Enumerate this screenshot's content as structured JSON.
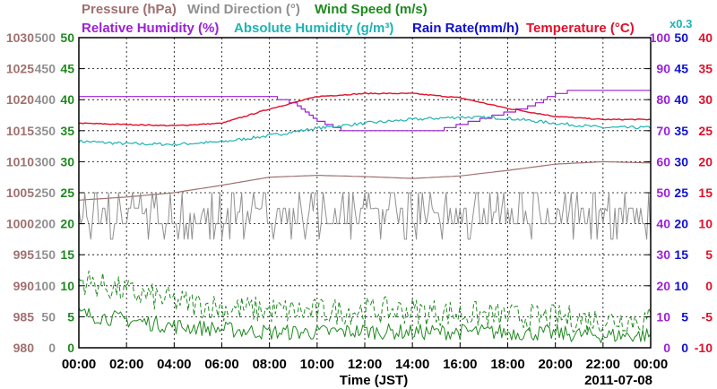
{
  "chart_data": {
    "type": "line",
    "legend": {
      "row1": [
        {
          "label": "Pressure (hPa)",
          "color": "#a0706f"
        },
        {
          "label": "Wind Direction (°)",
          "color": "#909090"
        },
        {
          "label": "Wind Speed (m/s)",
          "color": "#1f8a1f"
        }
      ],
      "row2": [
        {
          "label": "Relative Humidity (%)",
          "color": "#9a22d6"
        },
        {
          "label": "Absolute Humidity (g/m³)",
          "color": "#1fb3b3"
        },
        {
          "label": "Rain Rate(mm/h)",
          "color": "#1010d0"
        },
        {
          "label": "Temperature (°C)",
          "color": "#e0102a"
        }
      ],
      "rain_multiplier": "x0.3"
    },
    "xlabel": "Time (JST)",
    "date_label": "2011-07-08",
    "x_tick_labels": [
      "00:00",
      "02:00",
      "04:00",
      "06:00",
      "08:00",
      "10:00",
      "12:00",
      "14:00",
      "16:00",
      "18:00",
      "20:00",
      "22:00",
      "00:00"
    ],
    "xlim_hours": [
      0,
      24
    ],
    "grid": true,
    "axes": {
      "pressure": {
        "color": "#a0706f",
        "ticks": [
          "1030",
          "1025",
          "1020",
          "1015",
          "1010",
          "1005",
          "1000",
          "995",
          "990",
          "985",
          "980"
        ],
        "ylim": [
          980,
          1030
        ]
      },
      "wind_direction": {
        "color": "#909090",
        "ticks": [
          "500",
          "450",
          "400",
          "350",
          "300",
          "250",
          "200",
          "150",
          "100",
          "50",
          "0"
        ],
        "ylim": [
          0,
          500
        ]
      },
      "wind_speed": {
        "color": "#1f8a1f",
        "ticks": [
          "50",
          "45",
          "40",
          "35",
          "30",
          "25",
          "20",
          "15",
          "10",
          "5",
          "0"
        ],
        "ylim": [
          0,
          50
        ]
      },
      "relative_humidity": {
        "color": "#9a22d6",
        "ticks": [
          "100",
          "90",
          "80",
          "70",
          "60",
          "50",
          "40",
          "30",
          "20",
          "10",
          "0"
        ],
        "ylim": [
          0,
          100
        ]
      },
      "rain_rate": {
        "color": "#1010d0",
        "ticks": [
          "50",
          "45",
          "40",
          "35",
          "30",
          "25",
          "20",
          "15",
          "10",
          "5",
          "0"
        ],
        "ylim": [
          0,
          50
        ]
      },
      "temperature": {
        "color": "#e0102a",
        "ticks": [
          "40",
          "35",
          "30",
          "25",
          "20",
          "15",
          "10",
          "5",
          "0",
          "-5",
          "-10"
        ],
        "ylim": [
          -10,
          40
        ]
      }
    },
    "series": [
      {
        "name": "Pressure (hPa)",
        "axis": "pressure",
        "x": [
          0,
          2,
          4,
          6,
          8,
          10,
          12,
          14,
          16,
          18,
          20,
          22,
          24
        ],
        "y": [
          1003.8,
          1004.3,
          1005.0,
          1006.2,
          1007.5,
          1007.8,
          1007.6,
          1007.3,
          1007.7,
          1008.6,
          1009.6,
          1010.0,
          1009.8
        ]
      },
      {
        "name": "Relative Humidity (%)",
        "axis": "relative_humidity",
        "x": [
          0,
          1,
          2,
          3,
          4,
          5,
          6,
          7,
          8,
          9,
          10,
          11,
          12,
          13,
          14,
          15,
          16,
          17,
          18,
          19,
          20,
          21,
          22,
          23,
          24
        ],
        "y": [
          81,
          81,
          81,
          81,
          81,
          81,
          81,
          81,
          81,
          79,
          73,
          70,
          70,
          70,
          70,
          70,
          72,
          74,
          76,
          78,
          82,
          83,
          83,
          83,
          83
        ]
      },
      {
        "name": "Absolute Humidity (g/m³)",
        "axis": "wind_direction",
        "x": [
          0,
          2,
          4,
          6,
          8,
          10,
          12,
          14,
          16,
          18,
          20,
          22,
          24
        ],
        "y": [
          333,
          329,
          328,
          332,
          342,
          354,
          362,
          368,
          372,
          370,
          362,
          355,
          355
        ]
      },
      {
        "name": "Temperature (°C)",
        "axis": "temperature",
        "x": [
          0,
          2,
          4,
          6,
          8,
          10,
          12,
          14,
          16,
          18,
          20,
          22,
          24
        ],
        "y": [
          26.2,
          26.0,
          25.8,
          26.2,
          28.5,
          30.5,
          31.0,
          31.0,
          30.3,
          28.6,
          27.3,
          26.8,
          26.8
        ]
      },
      {
        "name": "Wind Direction (°)",
        "axis": "wind_direction",
        "x": [
          0,
          2,
          4,
          6,
          8,
          10,
          12,
          14,
          16,
          18,
          20,
          22,
          24
        ],
        "y": [
          210,
          215,
          218,
          215,
          225,
          220,
          225,
          220,
          215,
          220,
          222,
          220,
          225
        ]
      },
      {
        "name": "Wind Speed (m/s)",
        "axis": "wind_speed",
        "x": [
          0,
          2,
          4,
          6,
          8,
          10,
          12,
          14,
          16,
          18,
          20,
          22,
          24
        ],
        "y": [
          5.5,
          4.5,
          3.5,
          3.0,
          2.5,
          2.5,
          2.7,
          2.5,
          2.6,
          2.5,
          2.3,
          2.0,
          2.0
        ]
      },
      {
        "name": "Wind Speed gust (m/s)",
        "axis": "wind_speed",
        "x": [
          0,
          2,
          4,
          6,
          8,
          10,
          12,
          14,
          16,
          18,
          20,
          22,
          24
        ],
        "y": [
          11.0,
          9.0,
          7.5,
          6.5,
          6.0,
          5.8,
          6.0,
          6.0,
          5.5,
          5.0,
          4.8,
          4.5,
          4.5
        ]
      }
    ]
  }
}
